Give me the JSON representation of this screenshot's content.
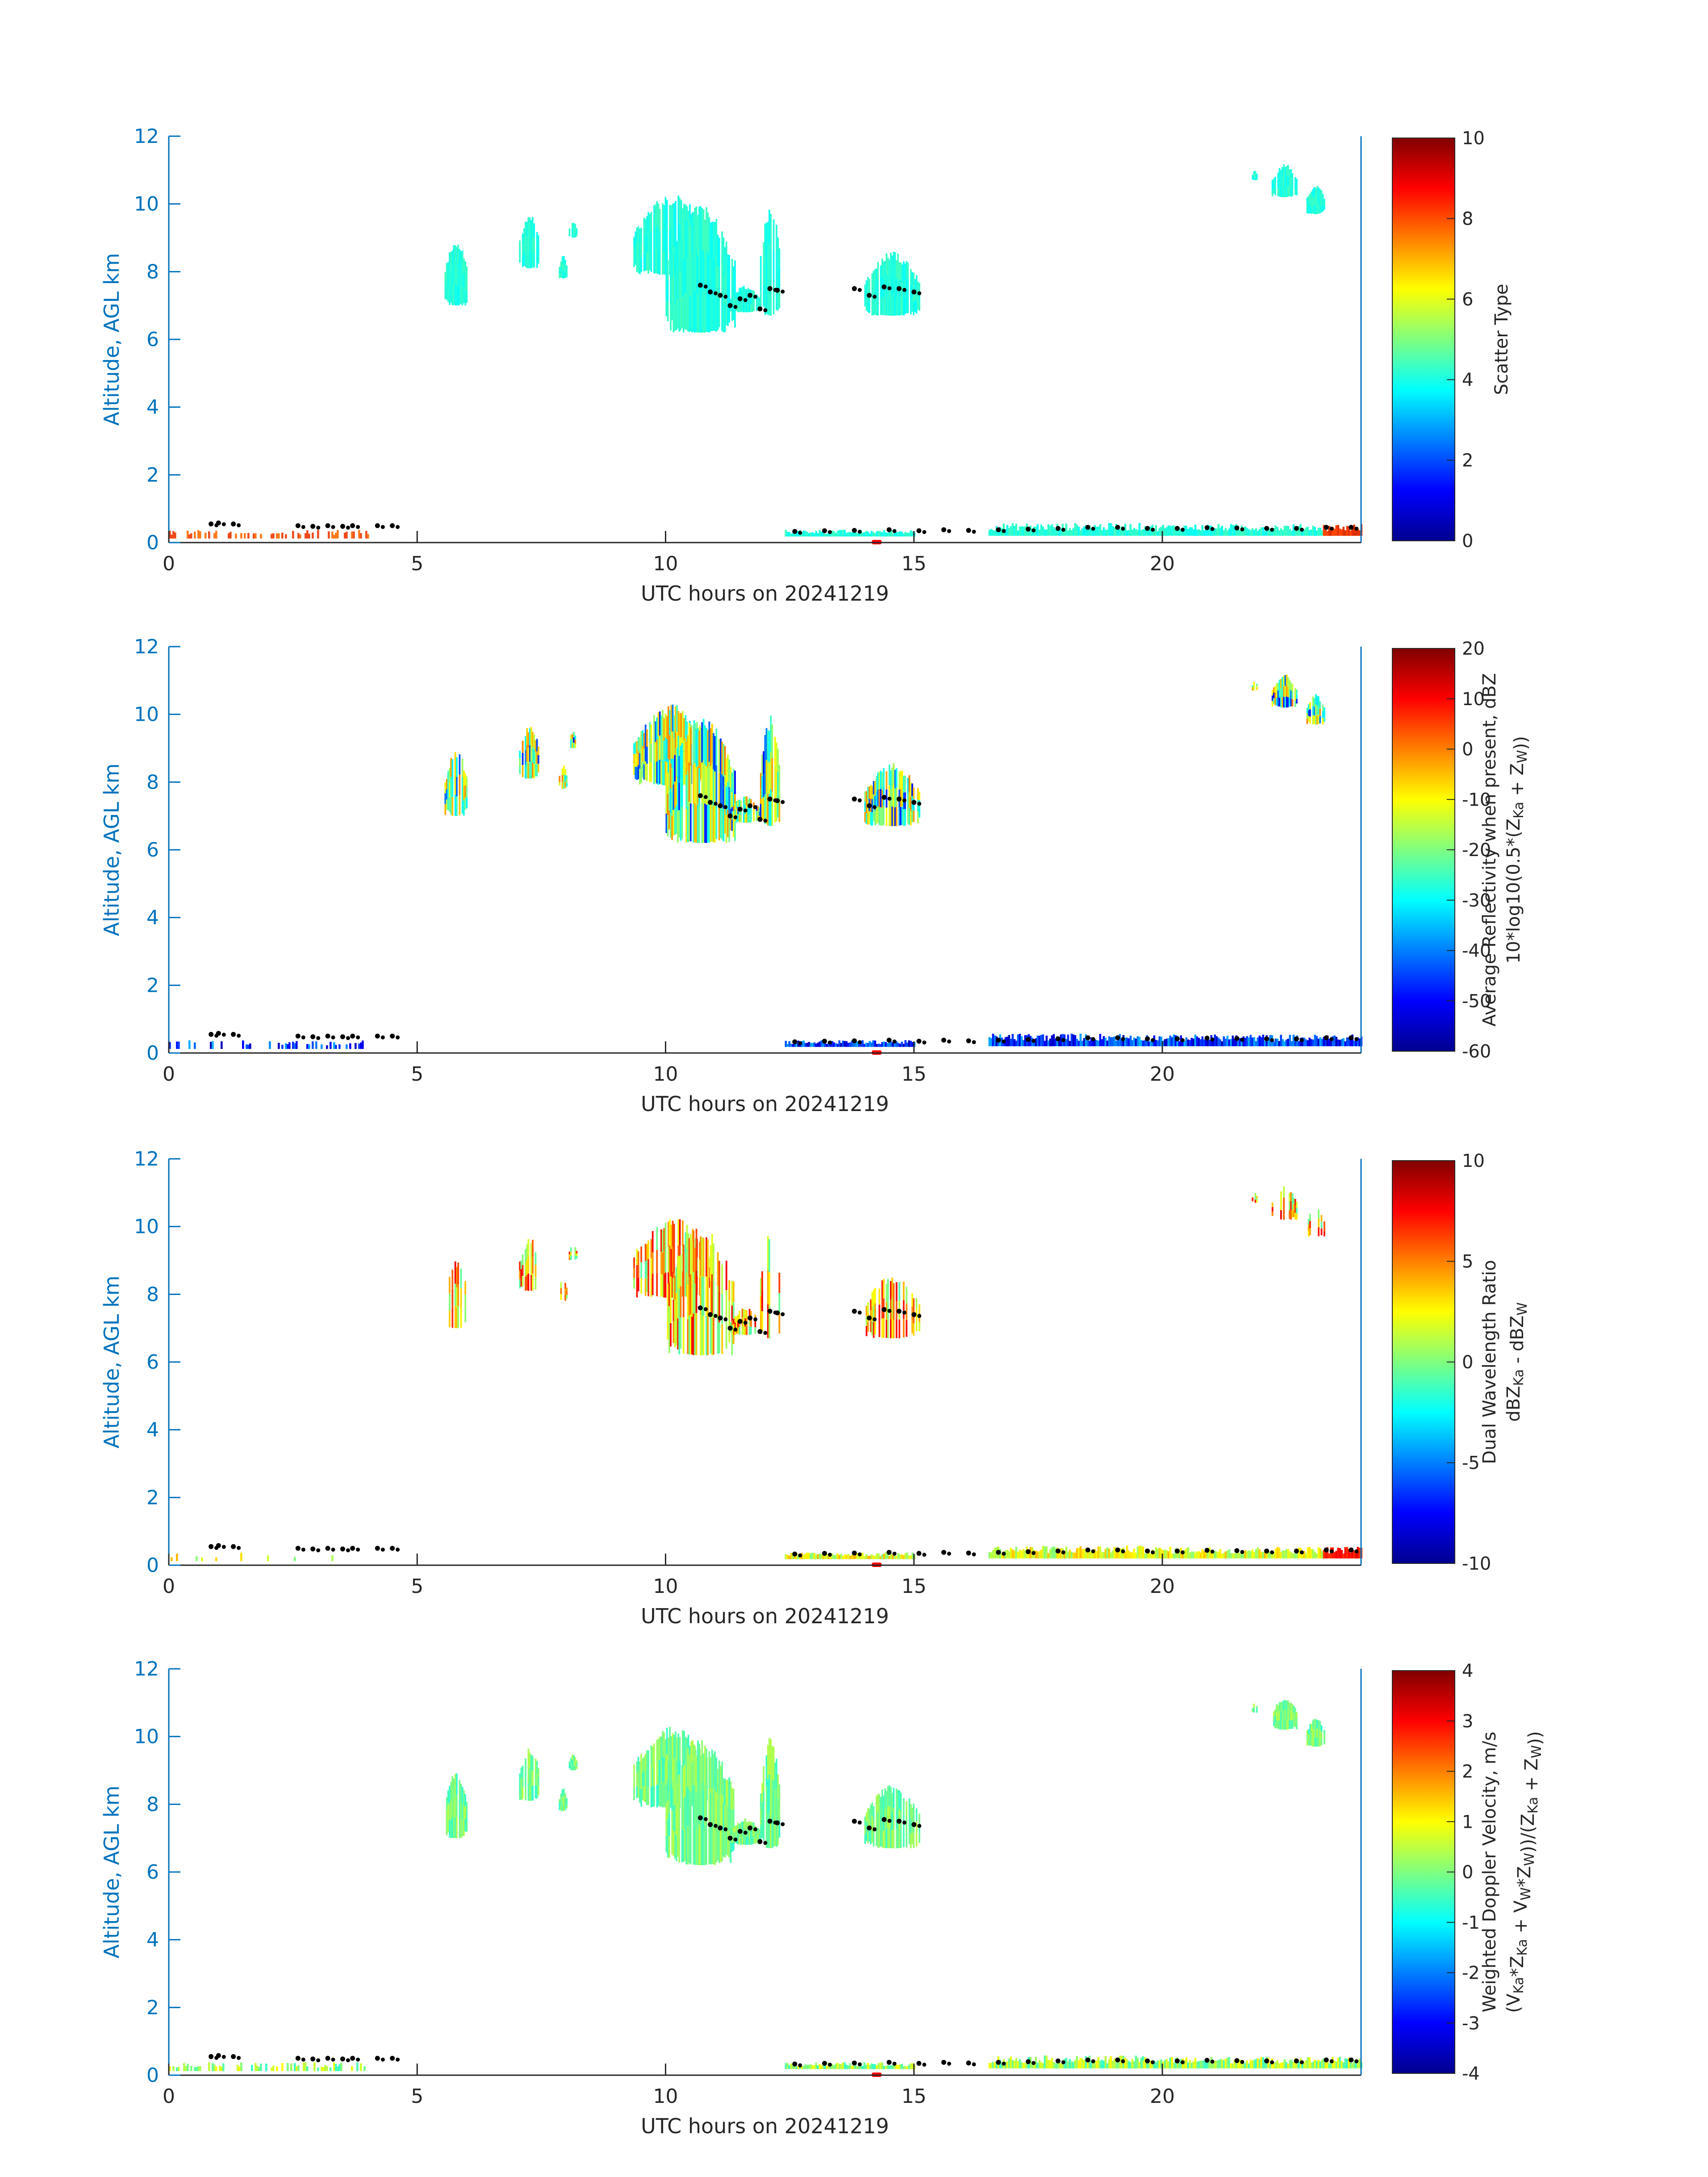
{
  "figure": {
    "date_label": "20241219"
  },
  "chart_data": [
    {
      "type": "heatmap",
      "xlabel": "UTC hours on 20241219",
      "ylabel": "Altitude, AGL km",
      "xlim": [
        0,
        24
      ],
      "ylim": [
        0,
        12
      ],
      "xticks": [
        0,
        5,
        10,
        15,
        20
      ],
      "yticks": [
        0,
        2,
        4,
        6,
        8,
        10,
        12
      ],
      "colorbar": {
        "label_lines": [
          "Scatter Type"
        ],
        "range": [
          0,
          10
        ],
        "ticks": [
          0,
          2,
          4,
          6,
          8,
          10
        ]
      },
      "field": "scatter_type"
    },
    {
      "type": "heatmap",
      "xlabel": "UTC hours on 20241219",
      "ylabel": "Altitude, AGL km",
      "xlim": [
        0,
        24
      ],
      "ylim": [
        0,
        12
      ],
      "xticks": [
        0,
        5,
        10,
        15,
        20
      ],
      "yticks": [
        0,
        2,
        4,
        6,
        8,
        10,
        12
      ],
      "colorbar": {
        "label_lines": [
          "Average Reflectivity when present, dBZ",
          "10*log10(0.5*(Z_Ka + Z_W))"
        ],
        "range": [
          -60,
          20
        ],
        "ticks": [
          -60,
          -50,
          -40,
          -30,
          -20,
          -10,
          0,
          10,
          20
        ]
      },
      "field": "reflectivity"
    },
    {
      "type": "heatmap",
      "xlabel": "UTC hours on 20241219",
      "ylabel": "Altitude, AGL km",
      "xlim": [
        0,
        24
      ],
      "ylim": [
        0,
        12
      ],
      "xticks": [
        0,
        5,
        10,
        15,
        20
      ],
      "yticks": [
        0,
        2,
        4,
        6,
        8,
        10,
        12
      ],
      "colorbar": {
        "label_lines": [
          "Dual Wavelength Ratio",
          "dBZ_Ka - dBZ_W"
        ],
        "range": [
          -10,
          10
        ],
        "ticks": [
          -10,
          -5,
          0,
          5,
          10
        ]
      },
      "field": "dwr"
    },
    {
      "type": "heatmap",
      "xlabel": "UTC hours on 20241219",
      "ylabel": "Altitude, AGL km",
      "xlim": [
        0,
        24
      ],
      "ylim": [
        0,
        12
      ],
      "xticks": [
        0,
        5,
        10,
        15,
        20
      ],
      "yticks": [
        0,
        2,
        4,
        6,
        8,
        10,
        12
      ],
      "colorbar": {
        "label_lines": [
          "Weighted Doppler Velocity, m/s",
          "(V_Ka*Z_Ka + V_W*Z_W))/(Z_Ka + Z_W))"
        ],
        "range": [
          -4,
          4
        ],
        "ticks": [
          -4,
          -3,
          -2,
          -1,
          0,
          1,
          2,
          3,
          4
        ]
      },
      "field": "velocity"
    }
  ],
  "features": {
    "cloud_regions": [
      {
        "t0": 5.55,
        "t1": 6.0,
        "z0": 7.0,
        "z1": 9.0
      },
      {
        "t0": 7.05,
        "t1": 7.45,
        "z0": 8.1,
        "z1": 9.7
      },
      {
        "t0": 7.85,
        "t1": 8.0,
        "z0": 7.8,
        "z1": 8.5
      },
      {
        "t0": 8.05,
        "t1": 8.2,
        "z0": 9.0,
        "z1": 9.5
      },
      {
        "t0": 9.35,
        "t1": 10.9,
        "z0": 7.9,
        "z1": 10.3
      },
      {
        "t0": 10.0,
        "t1": 11.4,
        "z0": 6.2,
        "z1": 10.0
      },
      {
        "t0": 11.3,
        "t1": 11.9,
        "z0": 6.8,
        "z1": 7.6
      },
      {
        "t0": 11.9,
        "t1": 12.3,
        "z0": 6.7,
        "z1": 10.0
      },
      {
        "t0": 14.0,
        "t1": 15.1,
        "z0": 6.7,
        "z1": 8.6
      },
      {
        "t0": 21.8,
        "t1": 21.9,
        "z0": 10.7,
        "z1": 11.0
      },
      {
        "t0": 22.2,
        "t1": 22.7,
        "z0": 10.2,
        "z1": 11.2
      },
      {
        "t0": 22.9,
        "t1": 23.25,
        "z0": 9.7,
        "z1": 10.6
      }
    ],
    "low_layer_segments": [
      {
        "t0": 0.0,
        "t1": 4.0,
        "z0": 0.12,
        "z1": 0.38
      },
      {
        "t0": 12.4,
        "t1": 15.0,
        "z0": 0.18,
        "z1": 0.38
      },
      {
        "t0": 16.5,
        "t1": 19.6,
        "z0": 0.2,
        "z1": 0.58
      },
      {
        "t0": 19.6,
        "t1": 24.0,
        "z0": 0.2,
        "z1": 0.55
      }
    ],
    "cloud_base_points": [
      {
        "t": 0.85,
        "z": 0.55
      },
      {
        "t": 1.0,
        "z": 0.58
      },
      {
        "t": 1.3,
        "z": 0.55
      },
      {
        "t": 2.6,
        "z": 0.5
      },
      {
        "t": 2.9,
        "z": 0.48
      },
      {
        "t": 3.2,
        "z": 0.5
      },
      {
        "t": 3.5,
        "z": 0.48
      },
      {
        "t": 3.7,
        "z": 0.5
      },
      {
        "t": 4.2,
        "z": 0.5
      },
      {
        "t": 4.5,
        "z": 0.5
      },
      {
        "t": 10.7,
        "z": 7.6
      },
      {
        "t": 10.9,
        "z": 7.4
      },
      {
        "t": 11.1,
        "z": 7.3
      },
      {
        "t": 11.3,
        "z": 7.0
      },
      {
        "t": 11.5,
        "z": 7.2
      },
      {
        "t": 11.7,
        "z": 7.3
      },
      {
        "t": 11.9,
        "z": 6.9
      },
      {
        "t": 12.1,
        "z": 7.5
      },
      {
        "t": 12.25,
        "z": 7.45
      },
      {
        "t": 13.8,
        "z": 7.5
      },
      {
        "t": 14.1,
        "z": 7.3
      },
      {
        "t": 14.4,
        "z": 7.55
      },
      {
        "t": 14.7,
        "z": 7.5
      },
      {
        "t": 15.0,
        "z": 7.4
      },
      {
        "t": 12.6,
        "z": 0.33
      },
      {
        "t": 13.2,
        "z": 0.35
      },
      {
        "t": 13.8,
        "z": 0.36
      },
      {
        "t": 14.5,
        "z": 0.38
      },
      {
        "t": 15.1,
        "z": 0.35
      },
      {
        "t": 15.6,
        "z": 0.38
      },
      {
        "t": 16.1,
        "z": 0.36
      },
      {
        "t": 16.7,
        "z": 0.38
      },
      {
        "t": 17.3,
        "z": 0.4
      },
      {
        "t": 17.9,
        "z": 0.42
      },
      {
        "t": 18.5,
        "z": 0.45
      },
      {
        "t": 19.1,
        "z": 0.45
      },
      {
        "t": 19.7,
        "z": 0.42
      },
      {
        "t": 20.3,
        "z": 0.42
      },
      {
        "t": 20.9,
        "z": 0.44
      },
      {
        "t": 21.5,
        "z": 0.43
      },
      {
        "t": 22.1,
        "z": 0.42
      },
      {
        "t": 22.7,
        "z": 0.42
      },
      {
        "t": 23.3,
        "z": 0.45
      },
      {
        "t": 23.8,
        "z": 0.45
      }
    ],
    "red_marker": {
      "t0": 14.15,
      "t1": 14.35,
      "z": 0.0
    }
  }
}
